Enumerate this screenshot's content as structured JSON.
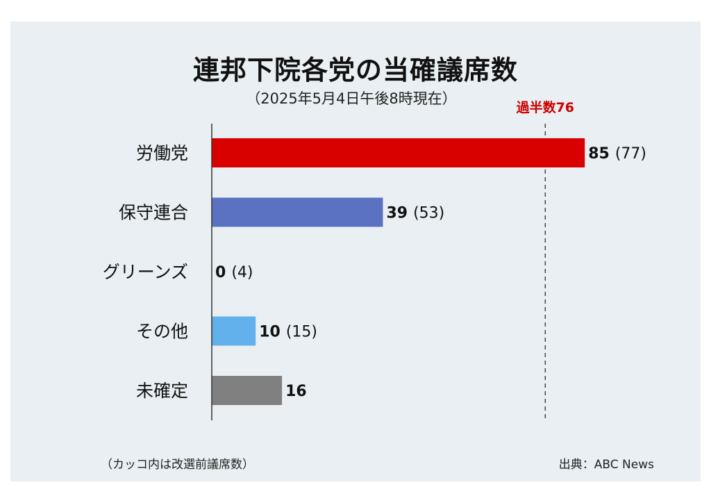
{
  "title": "連邦下院各党の当確議席数",
  "subtitle": "（2025年5月4日午後8時現在）",
  "footnote": "（カッコ内は改選前議席数）",
  "source": "出典：ABC News",
  "chart_data": {
    "type": "bar",
    "orientation": "horizontal",
    "categories": [
      "労働党",
      "保守連合",
      "グリーンズ",
      "その他",
      "未確定"
    ],
    "values": [
      85,
      39,
      0,
      10,
      16
    ],
    "previous_labels": [
      "(77)",
      "(53)",
      "(4)",
      "(15)",
      ""
    ],
    "colors": [
      "#d90000",
      "#5a72c1",
      "#5a72c1",
      "#62b0ec",
      "#808080"
    ],
    "reference_line": {
      "value": 76,
      "label": "過半数76",
      "color": "#cc0000"
    },
    "xlim": [
      0,
      100
    ],
    "grid": false
  }
}
